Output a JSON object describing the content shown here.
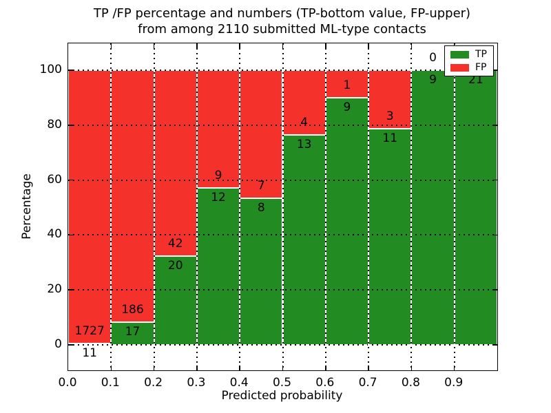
{
  "title": {
    "line1": "TP /FP percentage and numbers (TP-bottom value, FP-upper)",
    "line2": "from among 2110 submitted ML-type contacts"
  },
  "chart_data": {
    "type": "bar",
    "stacked": true,
    "normalized_to_percent": true,
    "title": "TP /FP percentage and numbers (TP-bottom value, FP-upper) from among 2110 submitted ML-type contacts",
    "xlabel": "Predicted probability",
    "ylabel": "Percentage",
    "x_bin_edges": [
      0.0,
      0.1,
      0.2,
      0.3,
      0.4,
      0.5,
      0.6,
      0.7,
      0.8,
      0.9,
      1.0
    ],
    "x_tick_labels": [
      "0.0",
      "0.1",
      "0.2",
      "0.3",
      "0.4",
      "0.5",
      "0.6",
      "0.7",
      "0.8",
      "0.9"
    ],
    "y_ticks": [
      0,
      20,
      40,
      60,
      80,
      100
    ],
    "ylim": [
      -9.25,
      109.75
    ],
    "grid": true,
    "series": [
      {
        "name": "TP",
        "color": "#228b22",
        "values": [
          11,
          17,
          20,
          12,
          8,
          13,
          9,
          11,
          9,
          21
        ]
      },
      {
        "name": "FP",
        "color": "#f5312b",
        "values": [
          1727,
          186,
          42,
          9,
          7,
          4,
          1,
          3,
          0,
          0
        ]
      }
    ],
    "bar_percentages_tp": [
      0.63,
      8.37,
      32.26,
      57.14,
      53.33,
      76.47,
      90.0,
      78.57,
      100.0,
      100.0
    ],
    "legend": {
      "position": "upper right",
      "entries": [
        "TP",
        "FP"
      ]
    },
    "annotation_note": "TP count printed below each TP/FP boundary, FP count above it"
  }
}
